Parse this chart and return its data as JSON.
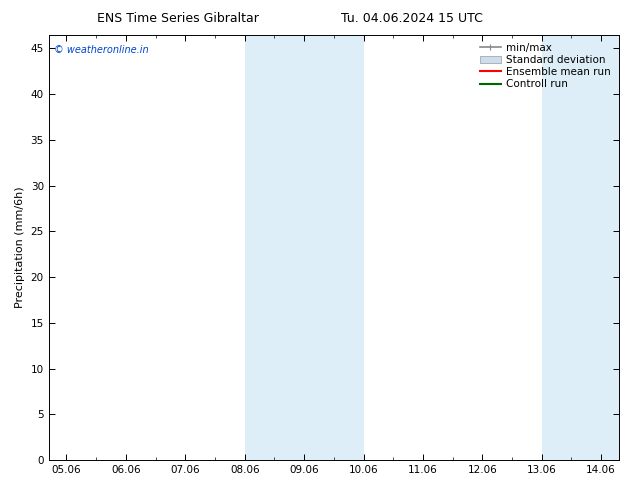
{
  "title_left": "ENS Time Series Gibraltar",
  "title_right": "Tu. 04.06.2024 15 UTC",
  "ylabel": "Precipitation (mm/6h)",
  "xlim_labels": [
    "05.06",
    "06.06",
    "07.06",
    "08.06",
    "09.06",
    "10.06",
    "11.06",
    "12.06",
    "13.06",
    "14.06"
  ],
  "ylim": [
    0,
    46.5
  ],
  "yticks": [
    0,
    5,
    10,
    15,
    20,
    25,
    30,
    35,
    40,
    45
  ],
  "shaded_regions": [
    {
      "xstart": 3.0,
      "xend": 4.0,
      "color": "#ddeef8"
    },
    {
      "xstart": 4.0,
      "xend": 5.0,
      "color": "#ddeef8"
    },
    {
      "xstart": 8.0,
      "xend": 9.0,
      "color": "#ddeef8"
    },
    {
      "xstart": 9.0,
      "xend": 10.0,
      "color": "#ddeef8"
    }
  ],
  "watermark": "© weatheronline.in",
  "watermark_color": "#0044cc",
  "background_color": "#ffffff",
  "legend_items": [
    {
      "label": "min/max",
      "color": "#888888",
      "lw": 1.2,
      "style": "line_with_ticks"
    },
    {
      "label": "Standard deviation",
      "color": "#ccddee",
      "lw": 8,
      "style": "thick_line"
    },
    {
      "label": "Ensemble mean run",
      "color": "#ff0000",
      "lw": 1.5,
      "style": "line"
    },
    {
      "label": "Controll run",
      "color": "#006600",
      "lw": 1.5,
      "style": "line"
    }
  ],
  "font_size_title": 9,
  "font_size_tick": 7.5,
  "font_size_legend": 7.5,
  "font_size_ylabel": 8
}
